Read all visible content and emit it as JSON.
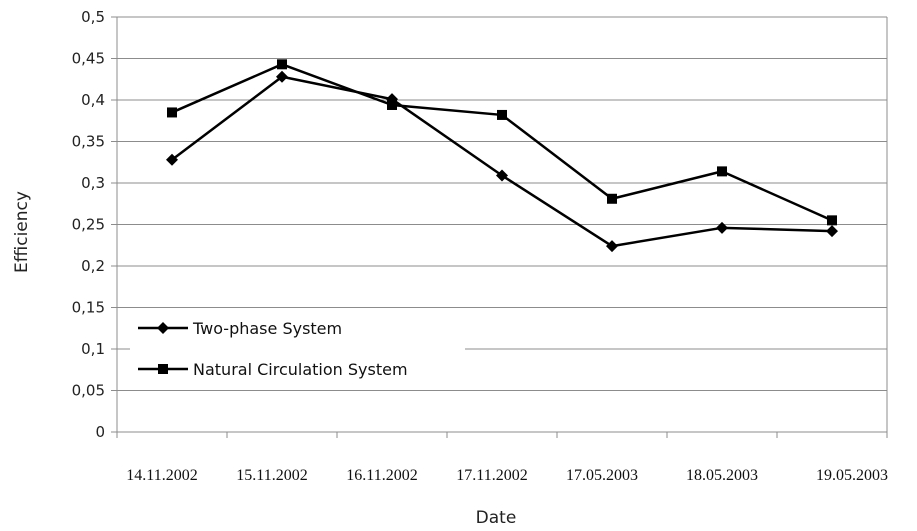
{
  "chart_data": {
    "type": "line",
    "title": "",
    "xlabel": "Date",
    "ylabel": "Efficiency",
    "categories": [
      "14.11.2002",
      "15.11.2002",
      "16.11.2002",
      "17.11.2002",
      "17.05.2003",
      "18.05.2003",
      "19.05.2003"
    ],
    "ylim": [
      0,
      0.5
    ],
    "yticks": [
      "0",
      "0,05",
      "0,1",
      "0,15",
      "0,2",
      "0,25",
      "0,3",
      "0,35",
      "0,4",
      "0,45",
      "0,5"
    ],
    "grid": true,
    "legend_position": "left",
    "series": [
      {
        "name": "Two-phase System",
        "marker": "diamond",
        "color": "#000000",
        "values": [
          0.328,
          0.428,
          0.401,
          0.309,
          0.224,
          0.246,
          0.242
        ]
      },
      {
        "name": "Natural Circulation System",
        "marker": "square",
        "color": "#000000",
        "values": [
          0.385,
          0.443,
          0.394,
          0.382,
          0.281,
          0.314,
          0.255
        ]
      }
    ]
  }
}
